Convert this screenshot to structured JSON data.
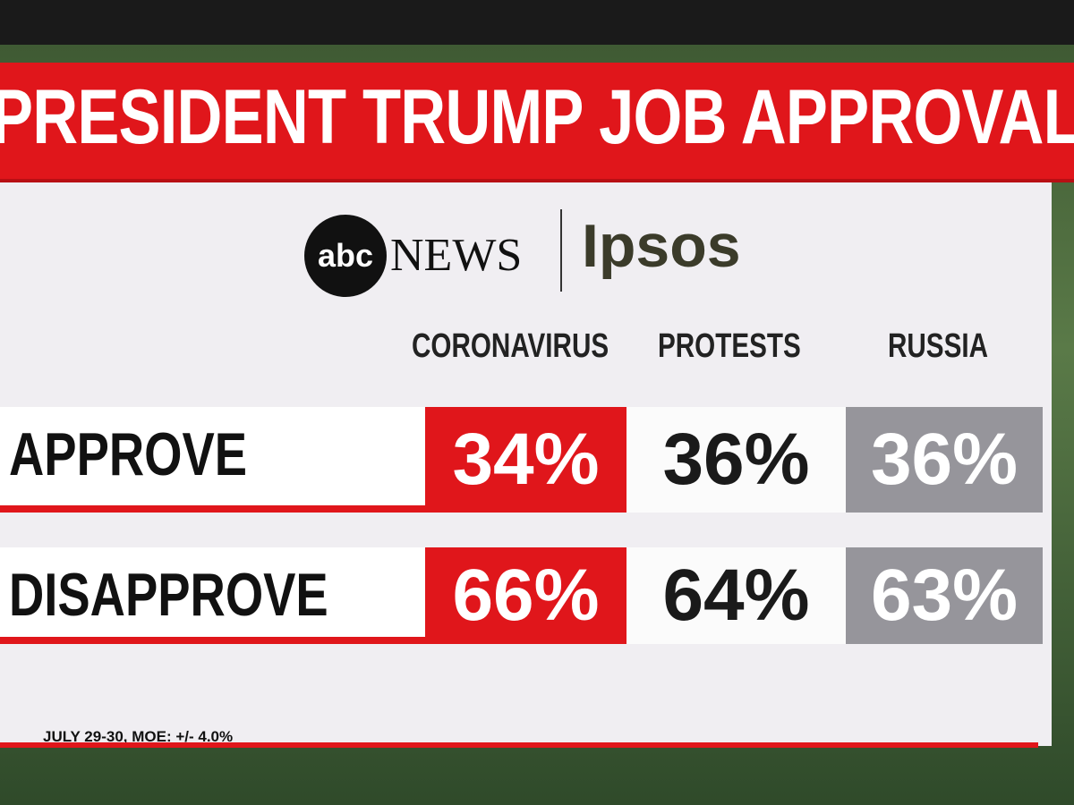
{
  "header": {
    "title": "PRESIDENT TRUMP JOB APPROVAL"
  },
  "logo": {
    "abc": "abc",
    "news": "NEWS",
    "partner": "Ipsos"
  },
  "table": {
    "columns": [
      "CORONAVIRUS",
      "PROTESTS",
      "RUSSIA"
    ],
    "rows": [
      {
        "label": "APPROVE",
        "cells": [
          "34%",
          "36%",
          "36%"
        ]
      },
      {
        "label": "DISAPPROVE",
        "cells": [
          "66%",
          "64%",
          "63%"
        ]
      }
    ]
  },
  "footer": {
    "note": "JULY 29-30, MOE: +/- 4.0%"
  }
}
